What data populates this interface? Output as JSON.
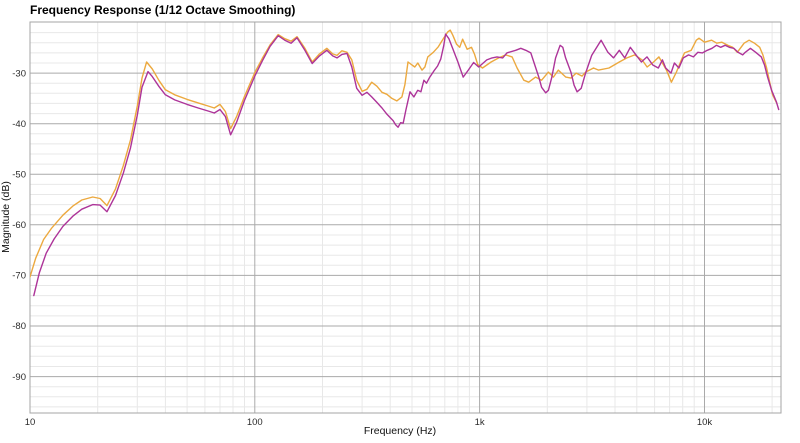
{
  "window": {
    "background_color": "#ffffff"
  },
  "chart_data": {
    "type": "line",
    "title": "Frequency Response (1/12 Octave Smoothing)",
    "xlabel": "Frequency (Hz)",
    "ylabel": "Magnitude (dB)",
    "x_scale": "log",
    "x_min": 10,
    "x_max": 21900,
    "y_min": -97.2,
    "y_max": -19.9,
    "grid": {
      "minor_color": "#e8e8e8",
      "major_color": "#aaaaaa",
      "border_color": "#a5a5a5",
      "y_minor_step_db": 2
    },
    "legend_position": "none",
    "x_major_ticks": [
      {
        "value": 10,
        "label": "10"
      },
      {
        "value": 100,
        "label": "100"
      },
      {
        "value": 1000,
        "label": "1k"
      },
      {
        "value": 10000,
        "label": "10k"
      }
    ],
    "y_major_ticks": [
      {
        "value": -30,
        "label": "-30"
      },
      {
        "value": -40,
        "label": "-40"
      },
      {
        "value": -50,
        "label": "-50"
      },
      {
        "value": -60,
        "label": "-60"
      },
      {
        "value": -70,
        "label": "-70"
      },
      {
        "value": -80,
        "label": "-80"
      },
      {
        "value": -90,
        "label": "-90"
      }
    ],
    "series": [
      {
        "name": "trace-orange",
        "color": "#ECA93F",
        "points": [
          [
            10,
            -70.3
          ],
          [
            10.6,
            -66.6
          ],
          [
            11.5,
            -62.9
          ],
          [
            12.5,
            -60.6
          ],
          [
            14,
            -58.1
          ],
          [
            15.5,
            -56.3
          ],
          [
            17,
            -55.1
          ],
          [
            19,
            -54.5
          ],
          [
            20.5,
            -54.8
          ],
          [
            22,
            -56.2
          ],
          [
            24,
            -52.9
          ],
          [
            26,
            -48.3
          ],
          [
            28,
            -43.2
          ],
          [
            30,
            -36.5
          ],
          [
            31.5,
            -31.0
          ],
          [
            33,
            -27.8
          ],
          [
            35,
            -29.2
          ],
          [
            37.5,
            -31.5
          ],
          [
            40,
            -33.3
          ],
          [
            44,
            -34.3
          ],
          [
            50,
            -35.2
          ],
          [
            56,
            -35.9
          ],
          [
            62,
            -36.5
          ],
          [
            66,
            -36.9
          ],
          [
            70,
            -36.2
          ],
          [
            74,
            -37.6
          ],
          [
            78,
            -41.0
          ],
          [
            83,
            -38.6
          ],
          [
            90,
            -34.6
          ],
          [
            100,
            -29.9
          ],
          [
            108,
            -27.1
          ],
          [
            117,
            -24.4
          ],
          [
            127,
            -22.4
          ],
          [
            136,
            -23.2
          ],
          [
            145,
            -23.7
          ],
          [
            154,
            -22.8
          ],
          [
            167,
            -25.1
          ],
          [
            180,
            -27.8
          ],
          [
            194,
            -26.2
          ],
          [
            209,
            -25.1
          ],
          [
            222,
            -26.2
          ],
          [
            232,
            -26.5
          ],
          [
            244,
            -25.6
          ],
          [
            257,
            -25.9
          ],
          [
            270,
            -27.4
          ],
          [
            284,
            -31.4
          ],
          [
            300,
            -33.6
          ],
          [
            315,
            -33.2
          ],
          [
            331,
            -31.8
          ],
          [
            349,
            -32.6
          ],
          [
            368,
            -33.8
          ],
          [
            387,
            -34.2
          ],
          [
            407,
            -35.0
          ],
          [
            428,
            -35.5
          ],
          [
            451,
            -34.7
          ],
          [
            465,
            -32.3
          ],
          [
            480,
            -27.8
          ],
          [
            500,
            -28.4
          ],
          [
            515,
            -28.8
          ],
          [
            531,
            -28.0
          ],
          [
            554,
            -29.4
          ],
          [
            571,
            -28.8
          ],
          [
            588,
            -26.8
          ],
          [
            622,
            -25.9
          ],
          [
            655,
            -24.8
          ],
          [
            689,
            -23.2
          ],
          [
            720,
            -21.9
          ],
          [
            740,
            -21.5
          ],
          [
            760,
            -22.5
          ],
          [
            790,
            -24.3
          ],
          [
            815,
            -24.9
          ],
          [
            840,
            -23.3
          ],
          [
            880,
            -25.3
          ],
          [
            920,
            -24.9
          ],
          [
            950,
            -26.3
          ],
          [
            980,
            -28.3
          ],
          [
            1030,
            -29.0
          ],
          [
            1124,
            -27.8
          ],
          [
            1216,
            -27.0
          ],
          [
            1306,
            -26.4
          ],
          [
            1394,
            -26.8
          ],
          [
            1468,
            -29.0
          ],
          [
            1572,
            -31.4
          ],
          [
            1652,
            -31.8
          ],
          [
            1773,
            -30.8
          ],
          [
            1886,
            -31.4
          ],
          [
            2022,
            -29.8
          ],
          [
            2128,
            -30.8
          ],
          [
            2239,
            -29.4
          ],
          [
            2417,
            -30.8
          ],
          [
            2546,
            -31.0
          ],
          [
            2685,
            -30.0
          ],
          [
            2857,
            -30.6
          ],
          [
            2960,
            -29.8
          ],
          [
            3210,
            -29.0
          ],
          [
            3380,
            -29.4
          ],
          [
            3760,
            -29.0
          ],
          [
            4180,
            -27.8
          ],
          [
            4520,
            -27.0
          ],
          [
            4900,
            -26.4
          ],
          [
            5280,
            -27.4
          ],
          [
            5560,
            -28.8
          ],
          [
            5940,
            -27.8
          ],
          [
            6270,
            -26.8
          ],
          [
            6780,
            -29.4
          ],
          [
            7130,
            -31.8
          ],
          [
            7500,
            -29.8
          ],
          [
            7900,
            -27.4
          ],
          [
            8150,
            -26.0
          ],
          [
            8730,
            -25.5
          ],
          [
            9200,
            -23.5
          ],
          [
            9460,
            -23.1
          ],
          [
            10000,
            -23.9
          ],
          [
            10760,
            -23.5
          ],
          [
            11350,
            -24.1
          ],
          [
            11950,
            -23.9
          ],
          [
            12700,
            -24.5
          ],
          [
            13350,
            -24.9
          ],
          [
            14000,
            -25.9
          ],
          [
            15000,
            -24.1
          ],
          [
            15800,
            -23.5
          ],
          [
            16700,
            -24.1
          ],
          [
            17600,
            -24.9
          ],
          [
            18200,
            -26.4
          ],
          [
            18900,
            -29.0
          ],
          [
            19500,
            -31.8
          ],
          [
            20100,
            -34.3
          ],
          [
            21000,
            -36.0
          ]
        ]
      },
      {
        "name": "trace-purple",
        "color": "#AD3499",
        "points": [
          [
            10.4,
            -74.0
          ],
          [
            11,
            -69.5
          ],
          [
            11.8,
            -65.6
          ],
          [
            12.8,
            -62.8
          ],
          [
            14,
            -60.3
          ],
          [
            15.5,
            -58.3
          ],
          [
            17,
            -56.9
          ],
          [
            19,
            -56.0
          ],
          [
            20.5,
            -56.1
          ],
          [
            22,
            -57.4
          ],
          [
            24,
            -54.2
          ],
          [
            26,
            -49.8
          ],
          [
            28,
            -44.8
          ],
          [
            30,
            -38.3
          ],
          [
            31.5,
            -32.8
          ],
          [
            33.5,
            -29.7
          ],
          [
            35,
            -30.7
          ],
          [
            37.5,
            -32.7
          ],
          [
            40,
            -34.3
          ],
          [
            44,
            -35.3
          ],
          [
            50,
            -36.2
          ],
          [
            56,
            -36.9
          ],
          [
            62,
            -37.5
          ],
          [
            66,
            -37.9
          ],
          [
            70,
            -37.2
          ],
          [
            74,
            -38.6
          ],
          [
            78,
            -42.2
          ],
          [
            83,
            -39.7
          ],
          [
            90,
            -35.4
          ],
          [
            100,
            -30.6
          ],
          [
            108,
            -27.6
          ],
          [
            117,
            -24.7
          ],
          [
            127,
            -22.6
          ],
          [
            136,
            -23.5
          ],
          [
            145,
            -24.1
          ],
          [
            154,
            -23.0
          ],
          [
            167,
            -25.5
          ],
          [
            180,
            -28.1
          ],
          [
            194,
            -26.6
          ],
          [
            209,
            -25.5
          ],
          [
            222,
            -26.6
          ],
          [
            232,
            -27.0
          ],
          [
            244,
            -26.3
          ],
          [
            257,
            -26.1
          ],
          [
            270,
            -28.8
          ],
          [
            284,
            -33.0
          ],
          [
            300,
            -34.4
          ],
          [
            315,
            -33.8
          ],
          [
            331,
            -34.7
          ],
          [
            349,
            -35.8
          ],
          [
            368,
            -36.9
          ],
          [
            385,
            -38.0
          ],
          [
            398,
            -38.7
          ],
          [
            412,
            -39.4
          ],
          [
            423,
            -40.2
          ],
          [
            434,
            -40.7
          ],
          [
            445,
            -39.8
          ],
          [
            457,
            -39.9
          ],
          [
            470,
            -37.3
          ],
          [
            490,
            -33.7
          ],
          [
            510,
            -34.7
          ],
          [
            530,
            -33.4
          ],
          [
            548,
            -33.7
          ],
          [
            565,
            -31.4
          ],
          [
            580,
            -32.0
          ],
          [
            600,
            -30.8
          ],
          [
            625,
            -29.6
          ],
          [
            650,
            -28.6
          ],
          [
            672,
            -27.2
          ],
          [
            692,
            -24.6
          ],
          [
            706,
            -22.3
          ],
          [
            730,
            -23.2
          ],
          [
            760,
            -25.2
          ],
          [
            800,
            -27.8
          ],
          [
            845,
            -30.8
          ],
          [
            890,
            -29.4
          ],
          [
            940,
            -27.9
          ],
          [
            990,
            -28.8
          ],
          [
            1076,
            -27.4
          ],
          [
            1136,
            -27.0
          ],
          [
            1195,
            -26.8
          ],
          [
            1266,
            -27.0
          ],
          [
            1322,
            -26.0
          ],
          [
            1447,
            -25.5
          ],
          [
            1525,
            -25.1
          ],
          [
            1604,
            -25.5
          ],
          [
            1688,
            -26.0
          ],
          [
            1742,
            -27.8
          ],
          [
            1832,
            -30.8
          ],
          [
            1886,
            -32.8
          ],
          [
            1967,
            -33.9
          ],
          [
            2022,
            -33.4
          ],
          [
            2090,
            -31.0
          ],
          [
            2177,
            -27.0
          ],
          [
            2280,
            -24.5
          ],
          [
            2344,
            -24.9
          ],
          [
            2413,
            -27.0
          ],
          [
            2546,
            -29.8
          ],
          [
            2630,
            -32.4
          ],
          [
            2712,
            -33.7
          ],
          [
            2830,
            -33.0
          ],
          [
            2960,
            -30.0
          ],
          [
            3150,
            -26.5
          ],
          [
            3470,
            -23.5
          ],
          [
            3720,
            -25.9
          ],
          [
            3940,
            -27.0
          ],
          [
            4180,
            -25.5
          ],
          [
            4420,
            -27.0
          ],
          [
            4680,
            -24.9
          ],
          [
            4960,
            -26.4
          ],
          [
            5240,
            -27.8
          ],
          [
            5550,
            -26.8
          ],
          [
            5890,
            -28.4
          ],
          [
            6230,
            -29.0
          ],
          [
            6500,
            -27.4
          ],
          [
            6720,
            -29.0
          ],
          [
            7100,
            -30.0
          ],
          [
            7350,
            -28.0
          ],
          [
            7700,
            -29.0
          ],
          [
            8050,
            -27.0
          ],
          [
            8500,
            -26.4
          ],
          [
            8930,
            -26.8
          ],
          [
            9350,
            -25.9
          ],
          [
            9800,
            -26.0
          ],
          [
            10300,
            -25.5
          ],
          [
            10800,
            -25.1
          ],
          [
            11300,
            -24.5
          ],
          [
            11800,
            -24.9
          ],
          [
            12350,
            -24.5
          ],
          [
            12900,
            -24.9
          ],
          [
            13500,
            -25.1
          ],
          [
            14100,
            -25.9
          ],
          [
            14800,
            -26.4
          ],
          [
            15200,
            -25.9
          ],
          [
            16000,
            -25.1
          ],
          [
            16900,
            -25.9
          ],
          [
            17900,
            -26.8
          ],
          [
            18500,
            -28.4
          ],
          [
            19100,
            -30.8
          ],
          [
            19900,
            -33.4
          ],
          [
            20900,
            -35.7
          ],
          [
            21400,
            -37.2
          ]
        ]
      }
    ]
  }
}
